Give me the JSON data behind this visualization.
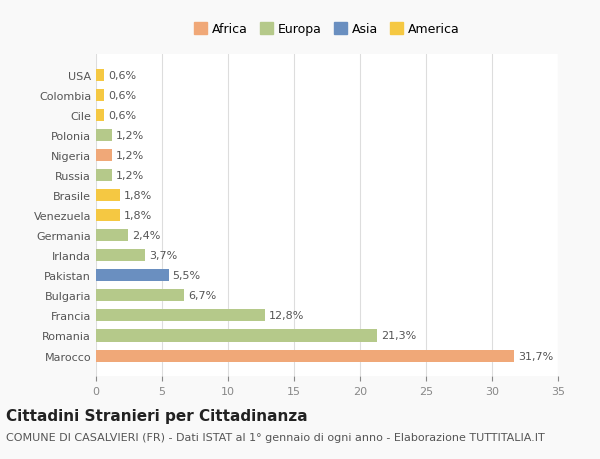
{
  "countries": [
    "Marocco",
    "Romania",
    "Francia",
    "Bulgaria",
    "Pakistan",
    "Irlanda",
    "Germania",
    "Venezuela",
    "Brasile",
    "Russia",
    "Nigeria",
    "Polonia",
    "Cile",
    "Colombia",
    "USA"
  ],
  "values": [
    31.7,
    21.3,
    12.8,
    6.7,
    5.5,
    3.7,
    2.4,
    1.8,
    1.8,
    1.2,
    1.2,
    1.2,
    0.6,
    0.6,
    0.6
  ],
  "labels": [
    "31,7%",
    "21,3%",
    "12,8%",
    "6,7%",
    "5,5%",
    "3,7%",
    "2,4%",
    "1,8%",
    "1,8%",
    "1,2%",
    "1,2%",
    "1,2%",
    "0,6%",
    "0,6%",
    "0,6%"
  ],
  "colors": [
    "#f0a878",
    "#b5c98a",
    "#b5c98a",
    "#b5c98a",
    "#6a8fc0",
    "#b5c98a",
    "#b5c98a",
    "#f5c842",
    "#f5c842",
    "#b5c98a",
    "#f0a878",
    "#b5c98a",
    "#f5c842",
    "#f5c842",
    "#f5c842"
  ],
  "legend_names": [
    "Africa",
    "Europa",
    "Asia",
    "America"
  ],
  "legend_colors": [
    "#f0a878",
    "#b5c98a",
    "#6a8fc0",
    "#f5c842"
  ],
  "xlim": [
    0,
    35
  ],
  "xticks": [
    0,
    5,
    10,
    15,
    20,
    25,
    30,
    35
  ],
  "title": "Cittadini Stranieri per Cittadinanza",
  "subtitle": "COMUNE DI CASALVIERI (FR) - Dati ISTAT al 1° gennaio di ogni anno - Elaborazione TUTTITALIA.IT",
  "background_color": "#f9f9f9",
  "bar_background_color": "#ffffff",
  "grid_color": "#dddddd",
  "title_fontsize": 11,
  "subtitle_fontsize": 8,
  "label_fontsize": 8,
  "tick_fontsize": 8,
  "legend_fontsize": 9,
  "bar_height": 0.6
}
